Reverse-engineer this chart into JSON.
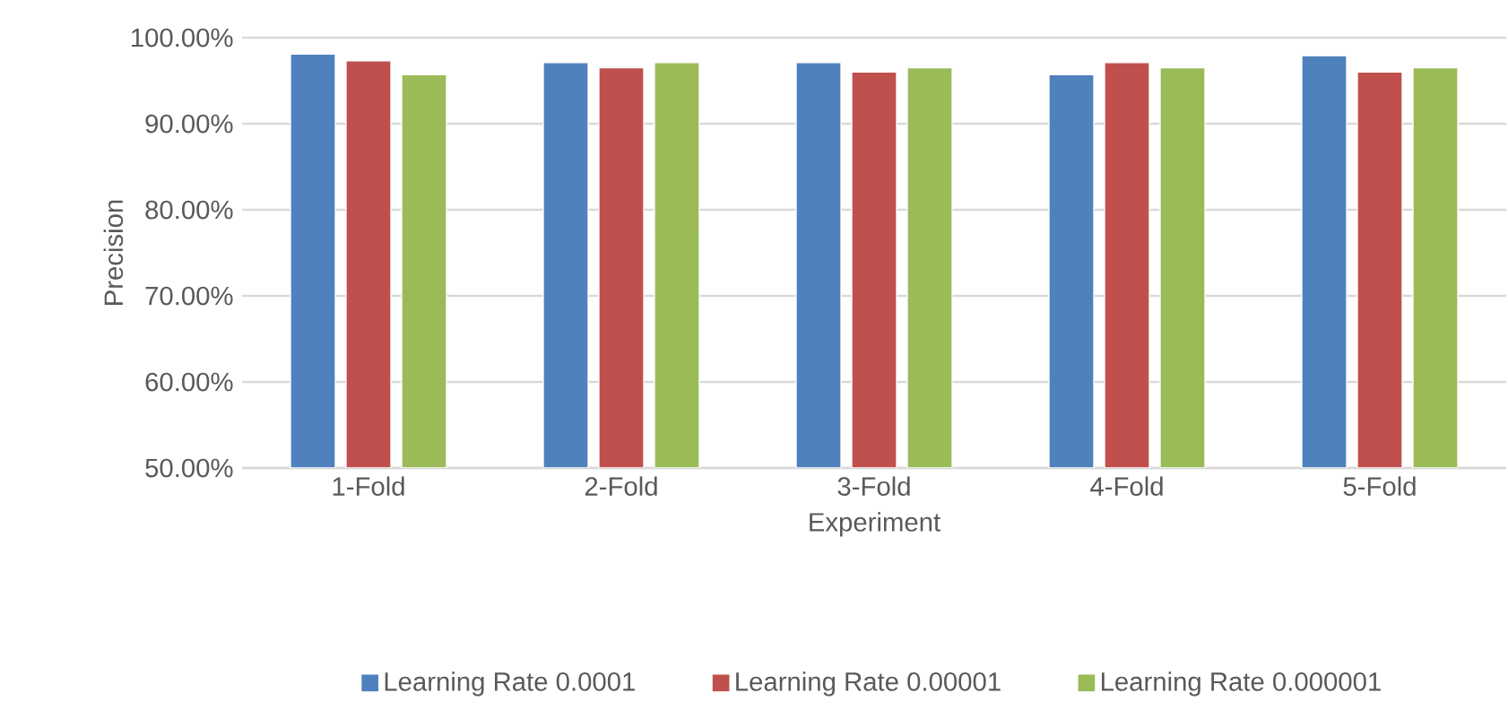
{
  "chart_data": {
    "type": "bar",
    "xlabel": "Experiment",
    "ylabel": "Precision",
    "categories": [
      "1-Fold",
      "2-Fold",
      "3-Fold",
      "4-Fold",
      "5-Fold"
    ],
    "series": [
      {
        "name": "Learning Rate 0.0001",
        "color": "#4f81bd",
        "values": [
          98.1,
          97.1,
          97.1,
          95.7,
          97.9
        ]
      },
      {
        "name": "Learning Rate 0.00001",
        "color": "#c0504d",
        "values": [
          97.3,
          96.5,
          96.0,
          97.1,
          96.0
        ]
      },
      {
        "name": "Learning Rate 0.000001",
        "color": "#9bbb59",
        "values": [
          95.7,
          97.1,
          96.5,
          96.5,
          96.5
        ]
      }
    ],
    "ylim": [
      50,
      100
    ],
    "yticks": [
      {
        "value": 50,
        "label": "50.00%"
      },
      {
        "value": 60,
        "label": "60.00%"
      },
      {
        "value": 70,
        "label": "70.00%"
      },
      {
        "value": 80,
        "label": "80.00%"
      },
      {
        "value": 90,
        "label": "90.00%"
      },
      {
        "value": 100,
        "label": "100.00%"
      }
    ],
    "grid": "y",
    "legend": "bottom"
  }
}
